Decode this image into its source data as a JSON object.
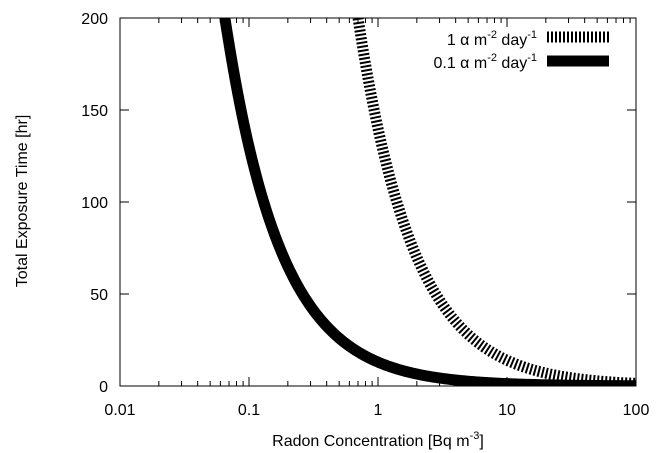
{
  "chart_data": {
    "type": "line",
    "title": "",
    "xlabel": "Radon Concentration [Bq m",
    "xlabel_sup": "-3",
    "xlabel_end": "]",
    "ylabel": "Total Exposure Time [hr]",
    "xscale": "log",
    "xlim": [
      0.01,
      100
    ],
    "ylim": [
      0,
      200
    ],
    "grid": false,
    "legend_position": "top-right",
    "x_ticks": [
      {
        "value": 0.01,
        "label": "0.01"
      },
      {
        "value": 0.1,
        "label": "0.1"
      },
      {
        "value": 1,
        "label": "1"
      },
      {
        "value": 10,
        "label": "10"
      },
      {
        "value": 100,
        "label": "100"
      }
    ],
    "y_ticks": [
      {
        "value": 0,
        "label": "0"
      },
      {
        "value": 50,
        "label": "50"
      },
      {
        "value": 100,
        "label": "100"
      },
      {
        "value": 150,
        "label": "150"
      },
      {
        "value": 200,
        "label": "200"
      }
    ],
    "series": [
      {
        "name": "1 α m-2 day-1",
        "legend_parts": [
          "1 α m",
          "-2",
          " day",
          "-1"
        ],
        "style": "dotted",
        "color": "#000000",
        "x": [
          0.7,
          1,
          2,
          5,
          10,
          20,
          50,
          100
        ],
        "y": [
          200,
          140,
          70,
          28,
          14,
          7,
          2.8,
          1.4
        ]
      },
      {
        "name": "0.1 α m-2 day-1",
        "legend_parts": [
          "0.1 α m",
          "-2",
          " day",
          "-1"
        ],
        "style": "solid",
        "color": "#000000",
        "x": [
          0.065,
          0.07,
          0.1,
          0.2,
          0.5,
          1,
          2,
          5,
          10,
          20,
          50,
          100
        ],
        "y": [
          200,
          186,
          130,
          65,
          26,
          13,
          6.5,
          2.6,
          1.3,
          0.65,
          0.26,
          0.13
        ]
      }
    ]
  }
}
